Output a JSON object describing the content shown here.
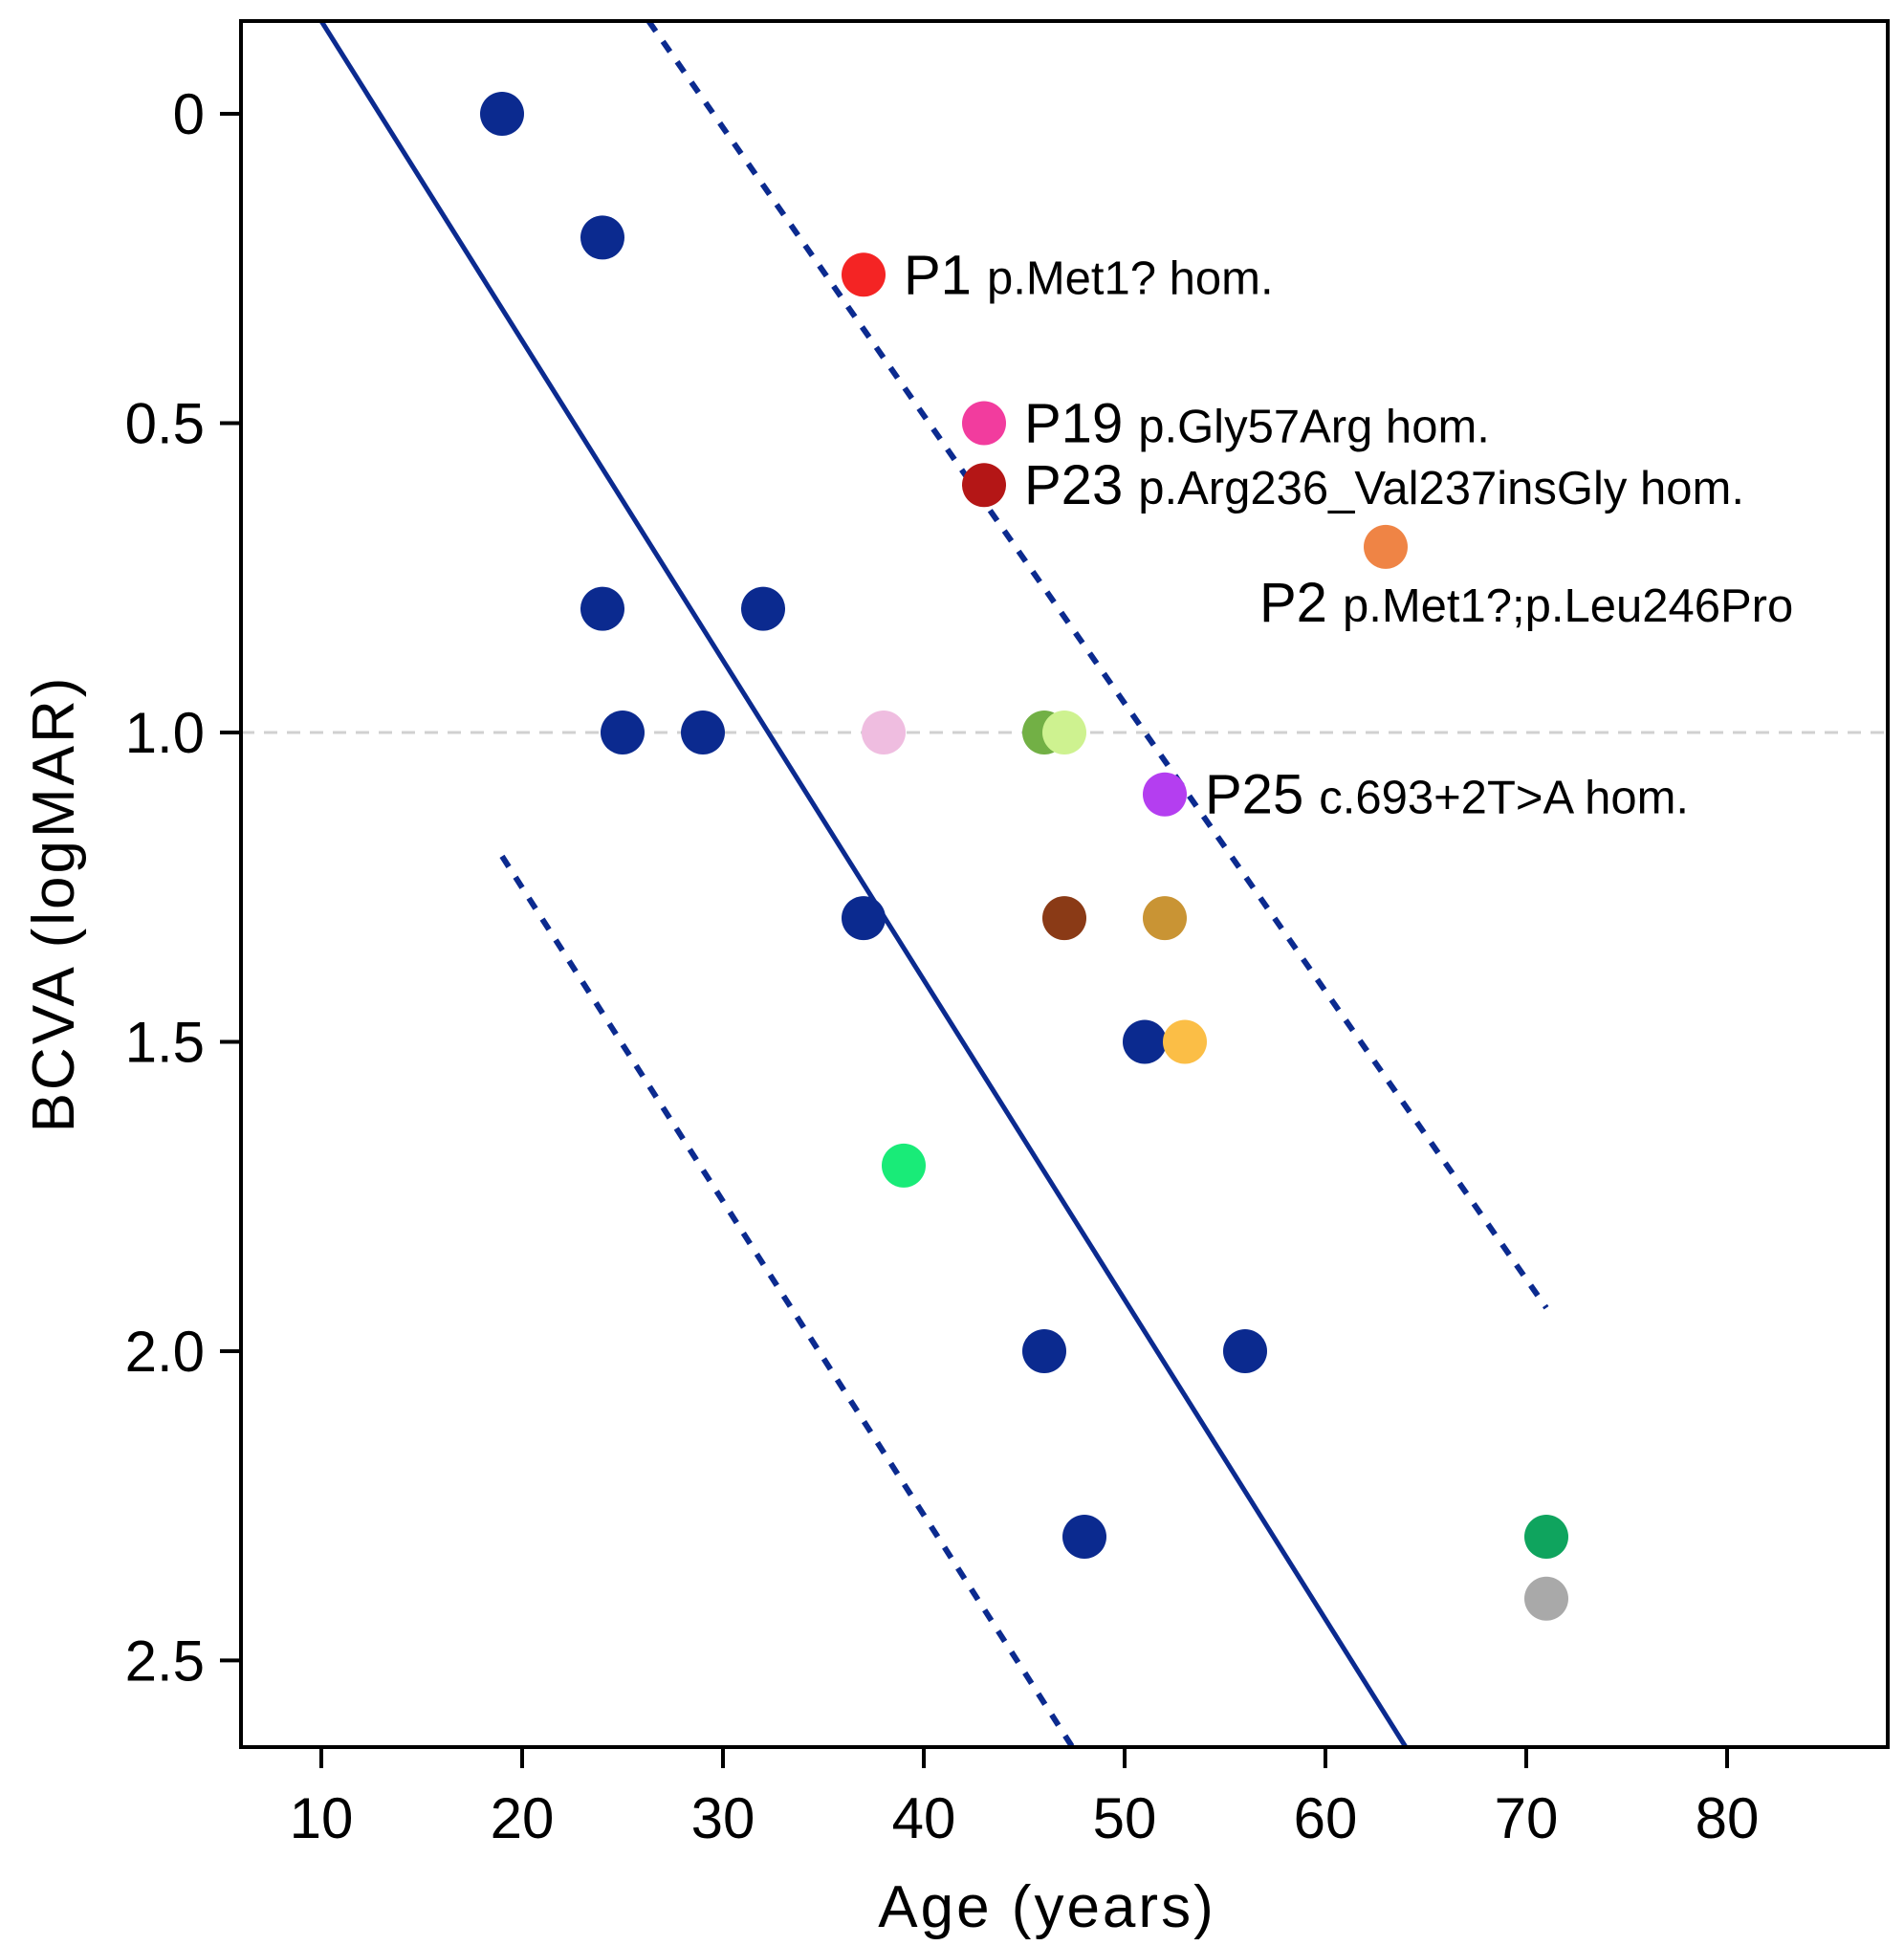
{
  "chart_data": {
    "type": "scatter",
    "xlabel": "Age (years)",
    "ylabel": "BCVA (logMAR)",
    "xlim": [
      6,
      88
    ],
    "ylim": [
      -0.15,
      2.64
    ],
    "y_axis_inverted": true,
    "x_ticks": [
      10,
      20,
      30,
      40,
      50,
      60,
      70,
      80
    ],
    "x_tick_labels": [
      "10",
      "20",
      "30",
      "40",
      "50",
      "60",
      "70",
      "80"
    ],
    "y_ticks": [
      0,
      0.5,
      1.0,
      1.5,
      2.0,
      2.5
    ],
    "y_tick_labels": [
      "0",
      "0.5",
      "1.0",
      "1.5",
      "2.0",
      "2.5"
    ],
    "reference_line": {
      "y": 1.0,
      "style": "dashed",
      "color": "#d0d0d0"
    },
    "regression": {
      "color": "#0b2a8f",
      "fit": [
        [
          10,
          -0.15
        ],
        [
          64,
          2.64
        ]
      ],
      "upper_bound": [
        [
          26.3,
          -0.15
        ],
        [
          71,
          1.93
        ]
      ],
      "lower_bound": [
        [
          19,
          1.2
        ],
        [
          47.4,
          2.64
        ]
      ]
    },
    "points": [
      {
        "x": 19,
        "y": 0.0,
        "color": "#0b2a8f"
      },
      {
        "x": 24,
        "y": 0.2,
        "color": "#0b2a8f"
      },
      {
        "x": 24,
        "y": 0.8,
        "color": "#0b2a8f"
      },
      {
        "x": 32,
        "y": 0.8,
        "color": "#0b2a8f"
      },
      {
        "x": 25,
        "y": 1.0,
        "color": "#0b2a8f"
      },
      {
        "x": 29,
        "y": 1.0,
        "color": "#0b2a8f"
      },
      {
        "x": 37,
        "y": 1.3,
        "color": "#0b2a8f"
      },
      {
        "x": 51,
        "y": 1.5,
        "color": "#0b2a8f"
      },
      {
        "x": 46,
        "y": 2.0,
        "color": "#0b2a8f"
      },
      {
        "x": 56,
        "y": 2.0,
        "color": "#0b2a8f"
      },
      {
        "x": 48,
        "y": 2.3,
        "color": "#0b2a8f"
      },
      {
        "x": 37,
        "y": 0.26,
        "color": "#f42424",
        "label": "P1",
        "variant": "p.Met1? hom."
      },
      {
        "x": 43,
        "y": 0.5,
        "color": "#f23c9e",
        "label": "P19",
        "variant": "p.Gly57Arg hom."
      },
      {
        "x": 43,
        "y": 0.6,
        "color": "#b41616",
        "label": "P23",
        "variant": "p.Arg236_Val237insGly hom."
      },
      {
        "x": 63,
        "y": 0.7,
        "color": "#ef8445",
        "label": "P2",
        "variant": "p.Met1?;p.Leu246Pro"
      },
      {
        "x": 38,
        "y": 1.0,
        "color": "#efbde0"
      },
      {
        "x": 46,
        "y": 1.0,
        "color": "#72b045"
      },
      {
        "x": 47,
        "y": 1.0,
        "color": "#cef290"
      },
      {
        "x": 52,
        "y": 1.1,
        "color": "#b43ef0",
        "label": "P25",
        "variant": "c.693+2T>A hom."
      },
      {
        "x": 47,
        "y": 1.3,
        "color": "#8a3a16"
      },
      {
        "x": 52,
        "y": 1.3,
        "color": "#c99434"
      },
      {
        "x": 53,
        "y": 1.5,
        "color": "#fbbe46"
      },
      {
        "x": 39,
        "y": 1.7,
        "color": "#19eb78"
      },
      {
        "x": 71,
        "y": 2.3,
        "color": "#0fa45e"
      },
      {
        "x": 71,
        "y": 2.4,
        "color": "#a9a9a9"
      }
    ]
  }
}
